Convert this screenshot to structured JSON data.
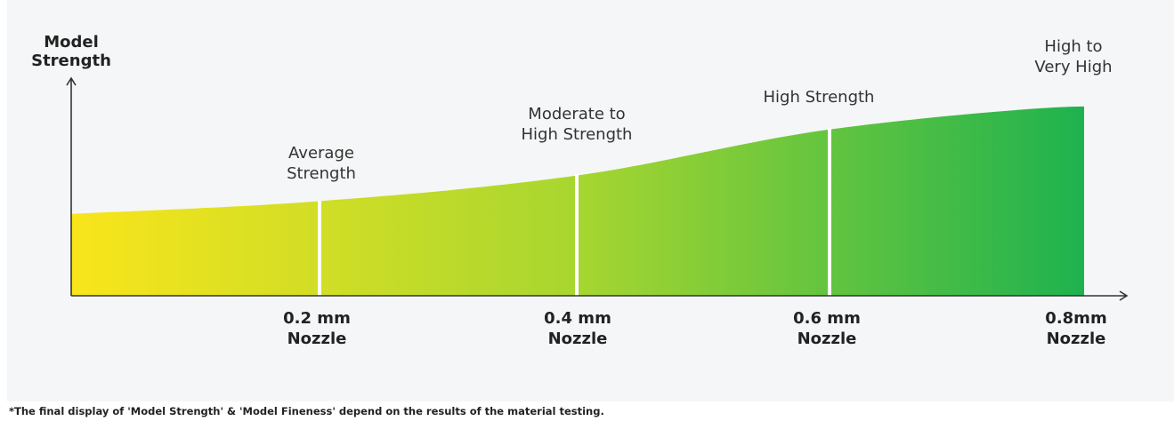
{
  "chart_data": {
    "type": "area",
    "ylabel": [
      "Model",
      "Strength"
    ],
    "categories": [
      "",
      "0.2 mm Nozzle",
      "0.4 mm Nozzle",
      "0.6 mm Nozzle",
      "0.8mm Nozzle"
    ],
    "x_labels": [
      [
        "0.2 mm",
        "Nozzle"
      ],
      [
        "0.4 mm",
        "Nozzle"
      ],
      [
        "0.6 mm",
        "Nozzle"
      ],
      [
        "0.8mm",
        "Nozzle"
      ]
    ],
    "values": [
      0.32,
      0.37,
      0.47,
      0.65,
      0.74
    ],
    "ylim": [
      0,
      1
    ],
    "point_labels": [
      [
        "Average",
        "Strength"
      ],
      [
        "Moderate to",
        "High Strength"
      ],
      [
        "High Strength"
      ],
      [
        "High to",
        "Very High"
      ]
    ],
    "gradient_colors": [
      "#f9e51b",
      "#a7d630",
      "#1eb24f"
    ],
    "divider_color": "#ffffff",
    "grid": false
  },
  "footnote": "*The final display of 'Model Strength' & 'Model Fineness' depend on the results of the material testing."
}
